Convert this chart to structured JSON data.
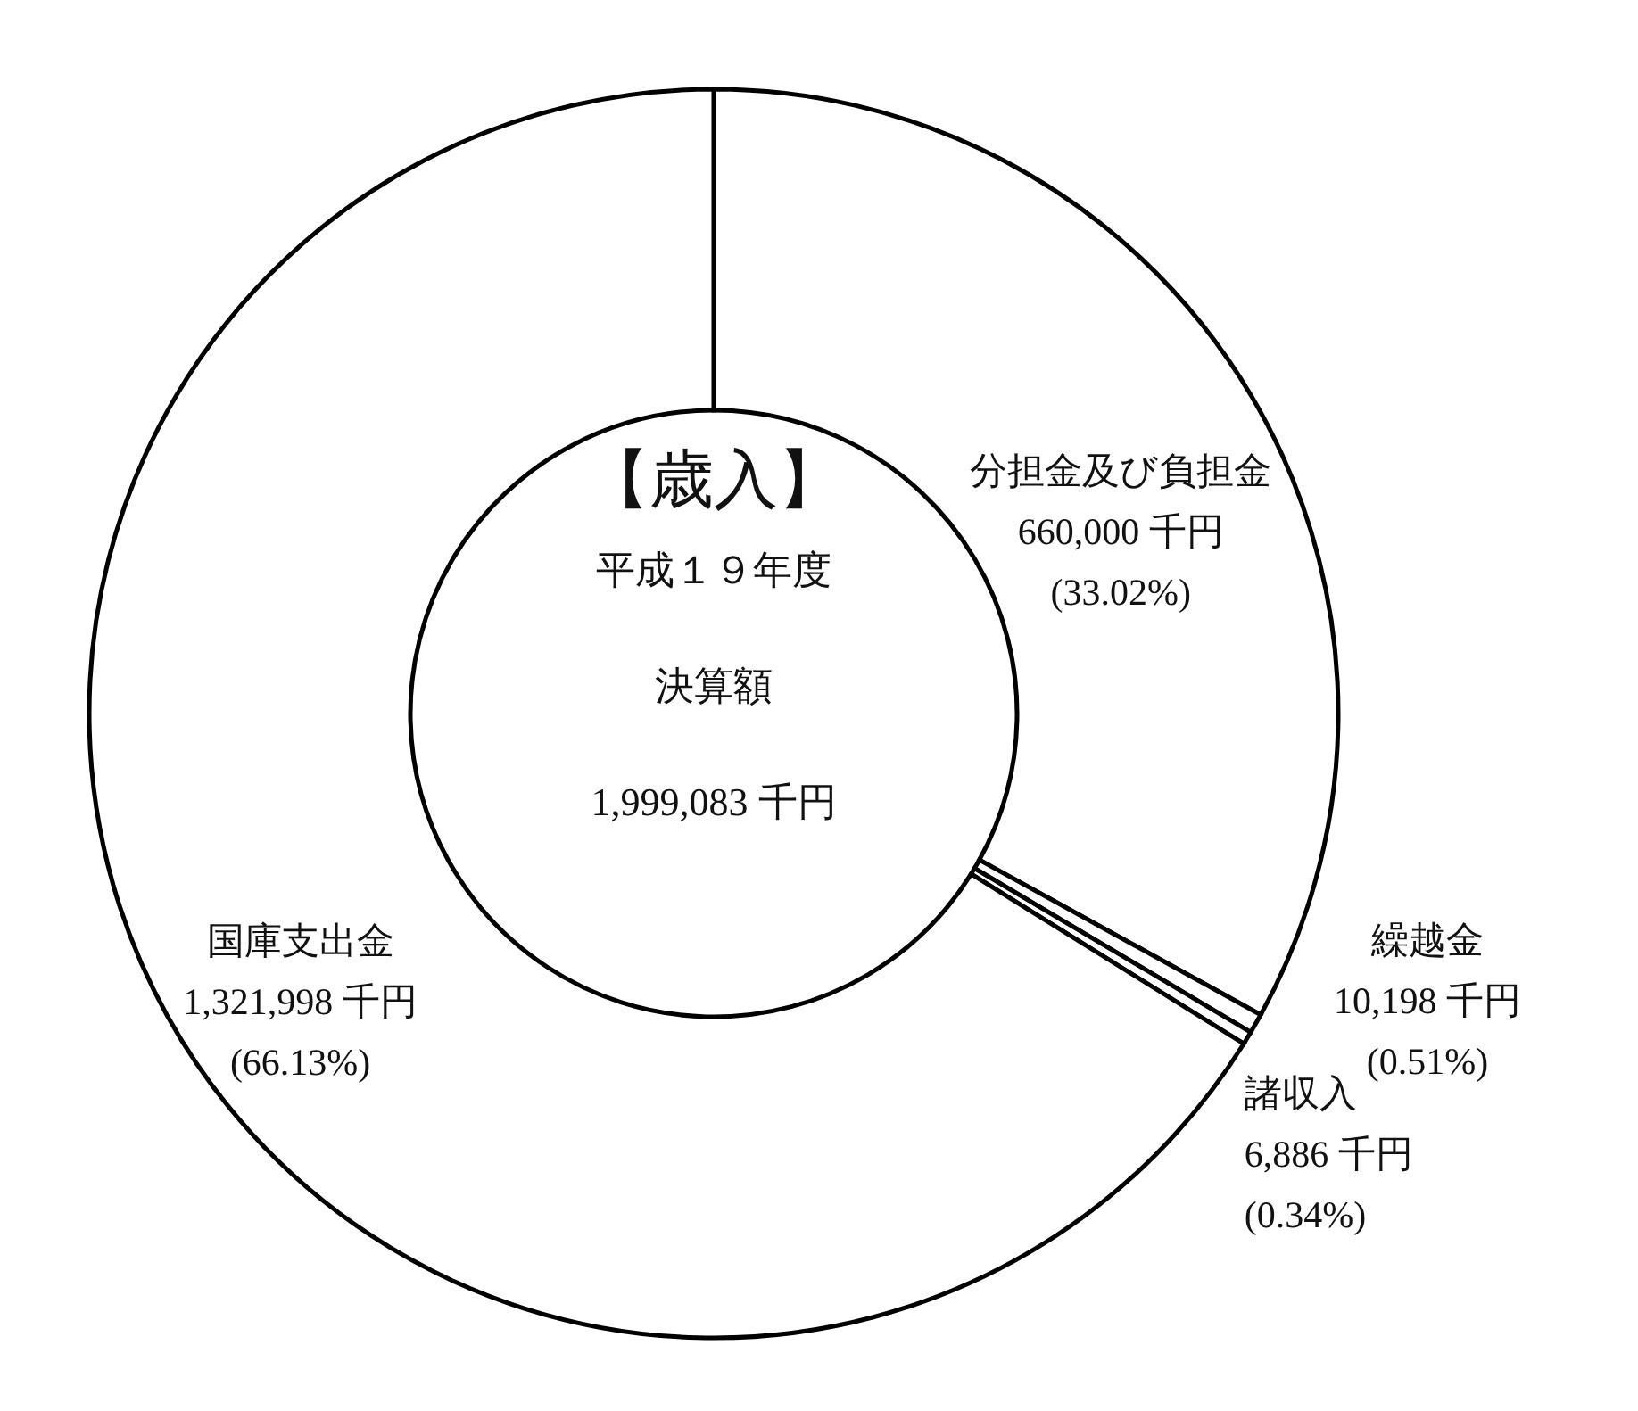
{
  "chart_data": {
    "type": "donut",
    "title": "【歳入】",
    "categories": [
      "分担金及び負担金",
      "繰越金",
      "諸収入",
      "国庫支出金"
    ],
    "values": [
      660000,
      10198,
      6886,
      1321998
    ],
    "colors": [
      "#ffffff",
      "#ffffff",
      "#ffffff",
      "#ffffff"
    ],
    "value_labels": [
      "660,000 千円\n(33.02%)",
      "10,198 千円\n(0.51%)",
      "6,886 千円\n(0.34%)",
      "1,321,998 千円\n(66.13%)"
    ],
    "annotations": [
      "平成１９年度",
      "決算額",
      "1,999,083 千円"
    ]
  }
}
